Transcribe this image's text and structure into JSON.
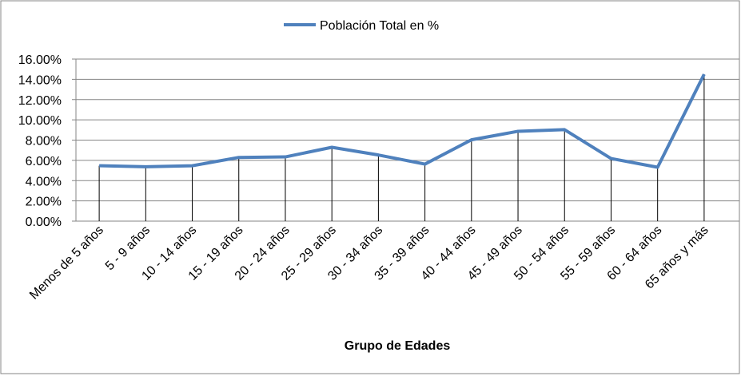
{
  "chart_data": {
    "type": "line",
    "title": "",
    "xlabel": "Grupo de Edades",
    "ylabel": "",
    "ylim": [
      0,
      16
    ],
    "yticks": [
      "0.00%",
      "2.00%",
      "4.00%",
      "6.00%",
      "8.00%",
      "10.00%",
      "12.00%",
      "14.00%",
      "16.00%"
    ],
    "legend_position": "top",
    "grid": true,
    "categories": [
      "Menos de 5 años",
      "5 - 9 años",
      "10 - 14 años",
      "15 - 19 años",
      "20 - 24 años",
      "25 - 29 años",
      "30 - 34 años",
      "35 - 39 años",
      "40 - 44 años",
      "45 - 49 años",
      "50 - 54 años",
      "55 - 59 años",
      "60 - 64 años",
      "65 años y más"
    ],
    "series": [
      {
        "name": "Población Total en %",
        "color": "#4f81bd",
        "values": [
          5.47,
          5.37,
          5.47,
          6.29,
          6.34,
          7.29,
          6.53,
          5.63,
          8.03,
          8.87,
          9.03,
          6.18,
          5.32,
          14.5
        ]
      }
    ]
  }
}
